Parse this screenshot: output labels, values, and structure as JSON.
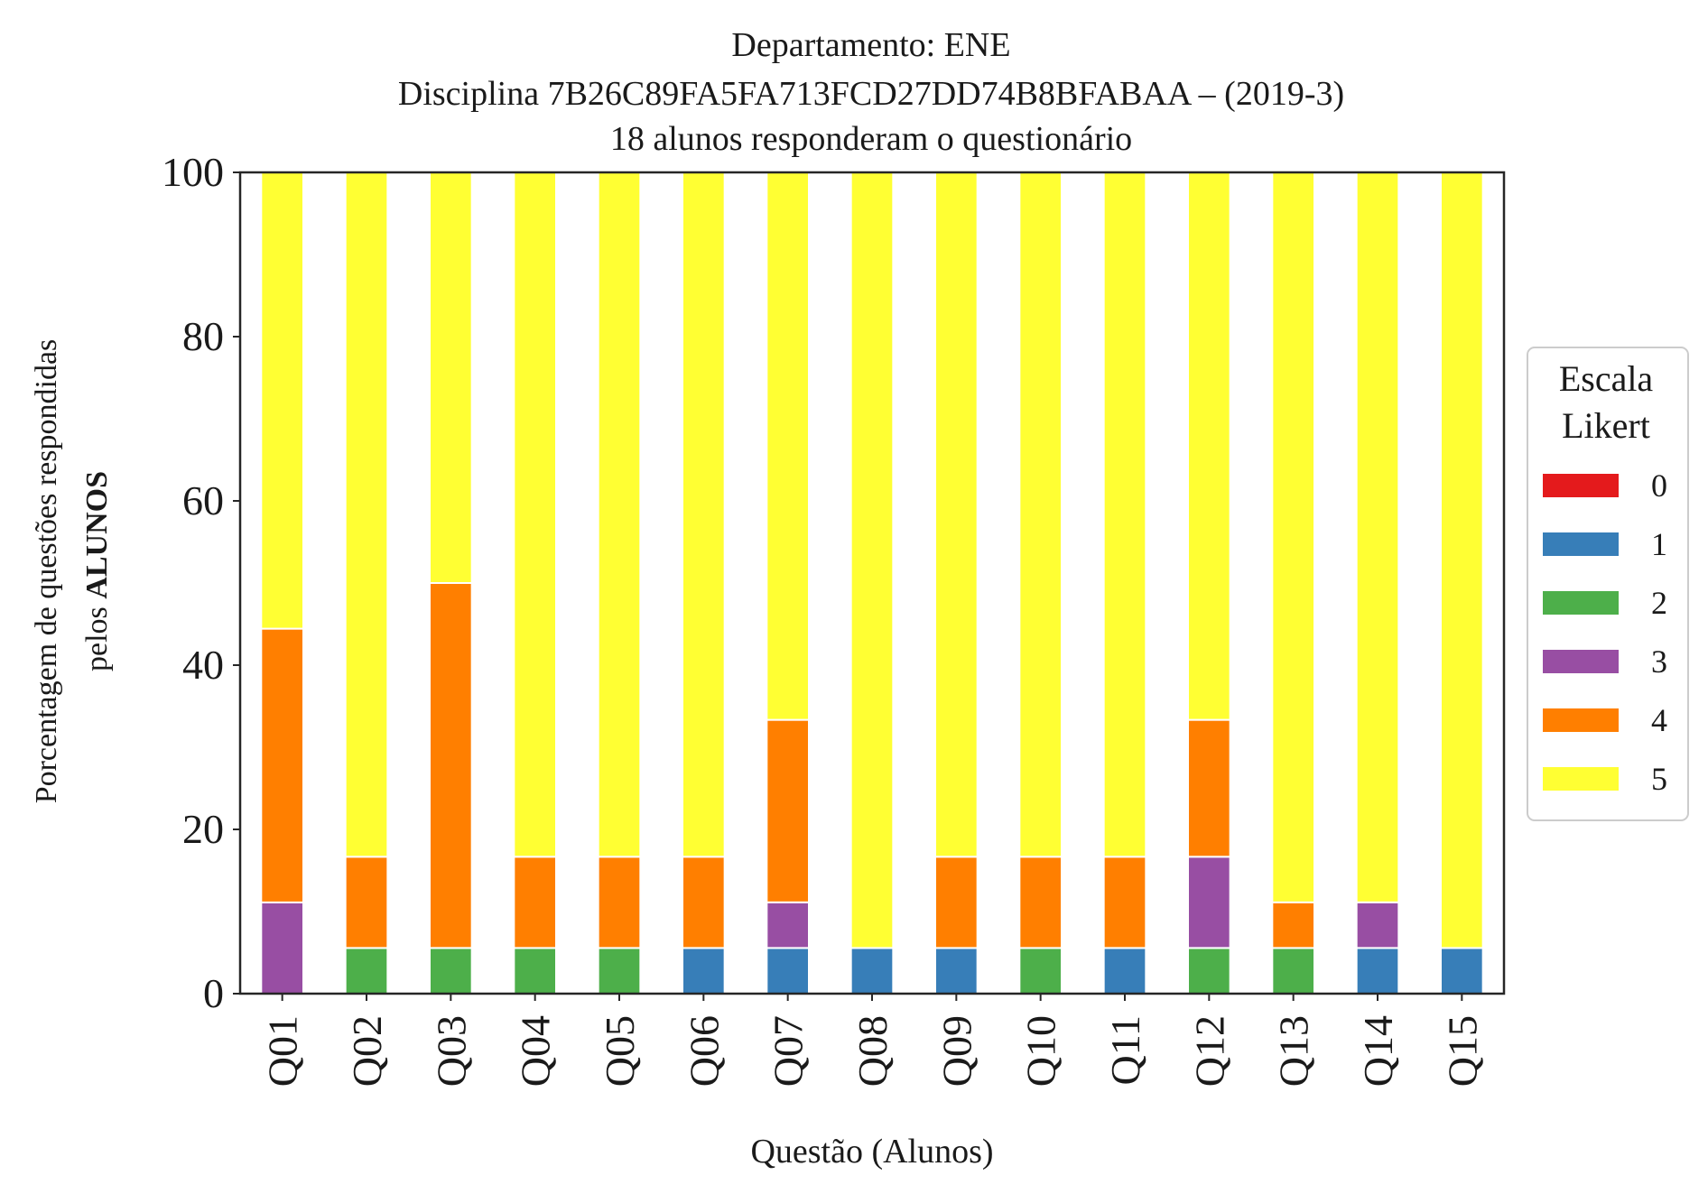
{
  "chart_data": {
    "type": "bar",
    "stacked": true,
    "title_lines": [
      "Departamento: ENE",
      "Disciplina 7B26C89FA5FA713FCD27DD74B8BFABAA – (2019-3)",
      "18 alunos responderam o questionário"
    ],
    "xlabel": "Questão (Alunos)",
    "ylabel_line1": "Porcentagem de questões respondidas",
    "ylabel_line2_prefix": "pelos ",
    "ylabel_line2_bold": "ALUNOS",
    "ylim": [
      0,
      100
    ],
    "yticks": [
      0,
      20,
      40,
      60,
      80,
      100
    ],
    "categories": [
      "Q01",
      "Q02",
      "Q03",
      "Q04",
      "Q05",
      "Q06",
      "Q07",
      "Q08",
      "Q09",
      "Q10",
      "Q11",
      "Q12",
      "Q13",
      "Q14",
      "Q15"
    ],
    "legend": {
      "title_lines": [
        "Escala",
        "Likert"
      ],
      "placement": "right-outside"
    },
    "series": [
      {
        "name": "0",
        "color": "#e41a1c",
        "values": [
          0,
          0,
          0,
          0,
          0,
          0,
          0,
          0,
          0,
          0,
          0,
          0,
          0,
          0,
          0
        ]
      },
      {
        "name": "1",
        "color": "#377eb8",
        "values": [
          0,
          0,
          0,
          0,
          0,
          5.56,
          5.56,
          5.56,
          5.56,
          0,
          5.56,
          0,
          0,
          5.56,
          5.56
        ]
      },
      {
        "name": "2",
        "color": "#4daf4a",
        "values": [
          0,
          5.56,
          5.56,
          5.56,
          5.56,
          0,
          0,
          0,
          0,
          5.56,
          0,
          5.56,
          5.56,
          0,
          0
        ]
      },
      {
        "name": "3",
        "color": "#984ea3",
        "values": [
          11.11,
          0,
          0,
          0,
          0,
          0,
          5.56,
          0,
          0,
          0,
          0,
          11.11,
          0,
          5.56,
          0
        ]
      },
      {
        "name": "4",
        "color": "#ff7f00",
        "values": [
          33.33,
          11.11,
          44.44,
          11.11,
          11.11,
          11.11,
          22.22,
          0,
          11.11,
          11.11,
          11.11,
          16.67,
          5.56,
          0,
          0
        ]
      },
      {
        "name": "5",
        "color": "#ffff33",
        "values": [
          55.56,
          83.33,
          50.0,
          83.33,
          83.33,
          83.33,
          66.67,
          94.44,
          83.33,
          83.33,
          83.33,
          66.67,
          88.89,
          88.89,
          94.44
        ]
      }
    ]
  }
}
